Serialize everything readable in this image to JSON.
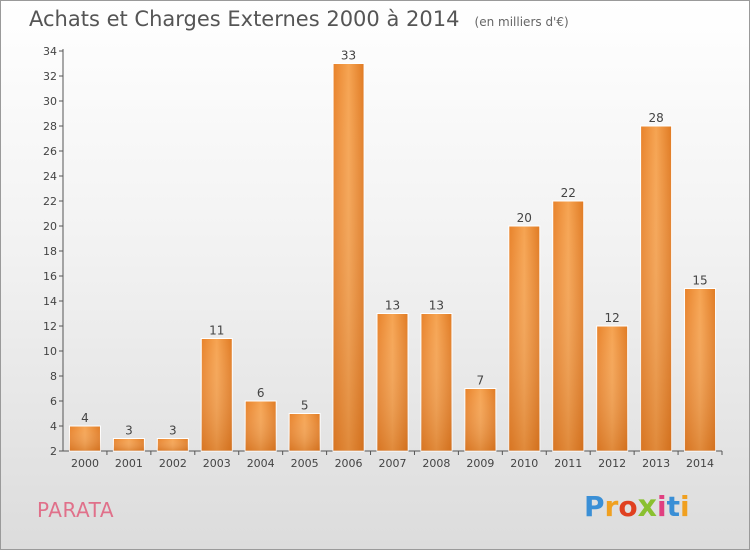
{
  "chart_data": {
    "type": "bar",
    "title": "Achats et Charges Externes 2000 à 2014",
    "subtitle": "(en milliers d'€)",
    "categories": [
      "2000",
      "2001",
      "2002",
      "2003",
      "2004",
      "2005",
      "2006",
      "2007",
      "2008",
      "2009",
      "2010",
      "2011",
      "2012",
      "2013",
      "2014"
    ],
    "values": [
      4,
      3,
      3,
      11,
      6,
      5,
      33,
      13,
      13,
      7,
      20,
      22,
      12,
      28,
      15
    ],
    "ylim": [
      2,
      34
    ],
    "yticks": [
      2,
      4,
      6,
      8,
      10,
      12,
      14,
      16,
      18,
      20,
      22,
      24,
      26,
      28,
      30,
      32,
      34
    ],
    "xlabel": "",
    "ylabel": "",
    "grid": false,
    "legend": "none",
    "bar_color": "#f0963a"
  },
  "footer": {
    "commune": "PARATA",
    "logo_letters": [
      "P",
      "r",
      "o",
      "x",
      "i",
      "t",
      "i"
    ],
    "logo_colors": [
      "#3a8fd6",
      "#f0a020",
      "#e04020",
      "#8ac030",
      "#e04080",
      "#3a8fd6",
      "#f0a020"
    ]
  }
}
